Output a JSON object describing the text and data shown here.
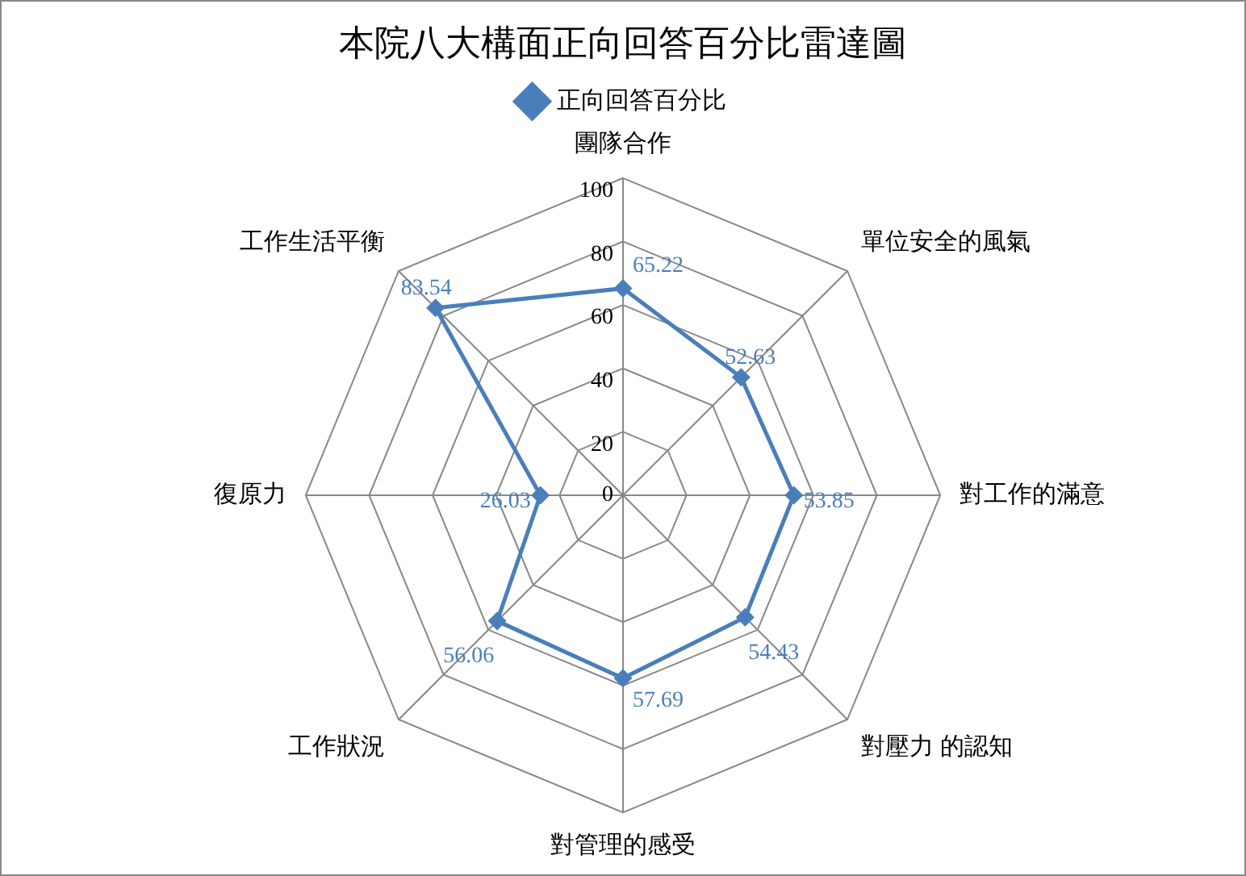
{
  "chart_data": {
    "type": "radar",
    "title": "本院八大構面正向回答百分比雷達圖",
    "categories": [
      "團隊合作",
      "單位安全的風氣",
      "對工作的滿意",
      "對壓力 的認知",
      "對管理的感受",
      "工作狀況",
      "復原力",
      "工作生活平衡"
    ],
    "series": [
      {
        "name": "正向回答百分比",
        "color": "#4a7ebb",
        "values": [
          65.22,
          52.63,
          53.85,
          54.43,
          57.69,
          56.06,
          26.03,
          83.54
        ]
      }
    ],
    "ylim": [
      0,
      100
    ],
    "yticks": [
      0,
      20,
      40,
      60,
      80,
      100
    ],
    "grid": true,
    "legend": "top",
    "marker": "diamond",
    "data_labels": true
  }
}
